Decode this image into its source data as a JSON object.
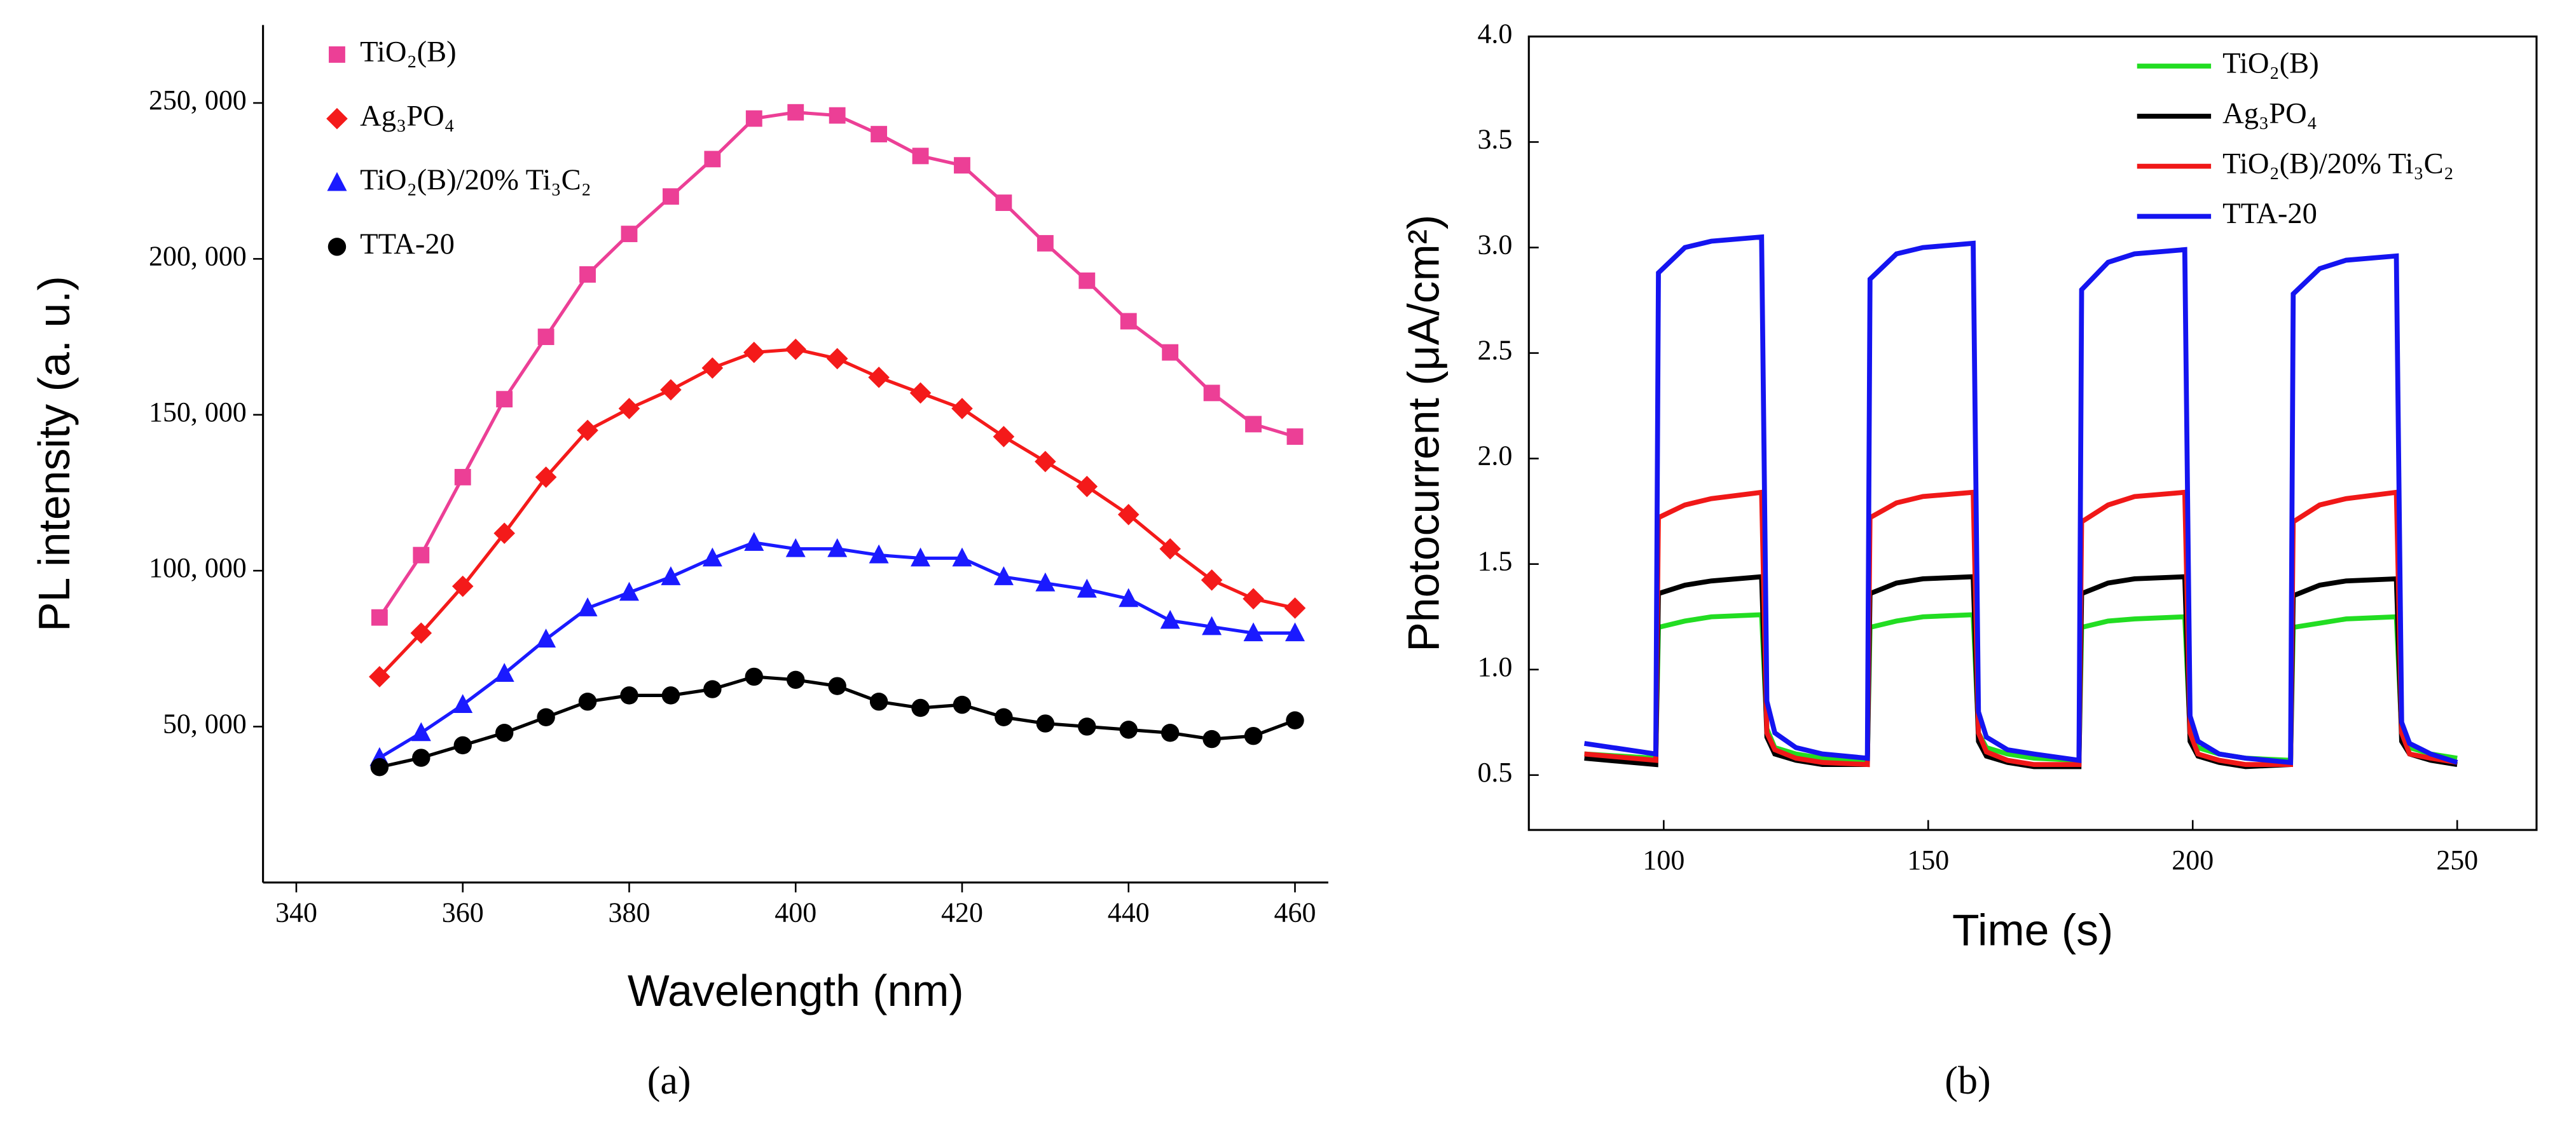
{
  "chart_data": [
    {
      "type": "line",
      "panel_label": "(a)",
      "x_label": "Wavelength (nm)",
      "y_label": "PL intensity (a. u.)",
      "x": [
        350,
        355,
        360,
        365,
        370,
        375,
        380,
        385,
        390,
        395,
        400,
        405,
        410,
        415,
        420,
        425,
        430,
        435,
        440,
        445,
        450,
        455,
        460
      ],
      "series": [
        {
          "name": "TiO₂(B)",
          "color": "#ec3f96",
          "marker": "square",
          "values": [
            85000,
            105000,
            130000,
            155000,
            175000,
            195000,
            208000,
            220000,
            232000,
            245000,
            247000,
            246000,
            240000,
            233000,
            230000,
            218000,
            205000,
            193000,
            180000,
            170000,
            157000,
            147000,
            143000
          ]
        },
        {
          "name": "Ag₃PO₄",
          "color": "#f41a1a",
          "marker": "diamond",
          "values": [
            66000,
            80000,
            95000,
            112000,
            130000,
            145000,
            152000,
            158000,
            165000,
            170000,
            171000,
            168000,
            162000,
            157000,
            152000,
            143000,
            135000,
            127000,
            118000,
            107000,
            97000,
            91000,
            88000
          ]
        },
        {
          "name": "TiO₂(B)/20% Ti₃C₂",
          "color": "#1a1aff",
          "marker": "triangle",
          "values": [
            40000,
            48000,
            57000,
            67000,
            78000,
            88000,
            93000,
            98000,
            104000,
            109000,
            107000,
            107000,
            105000,
            104000,
            104000,
            98000,
            96000,
            94000,
            91000,
            84000,
            82000,
            80000,
            80000
          ]
        },
        {
          "name": "TTA-20",
          "color": "#000000",
          "marker": "circle",
          "values": [
            37000,
            40000,
            44000,
            48000,
            53000,
            58000,
            60000,
            60000,
            62000,
            66000,
            65000,
            63000,
            58000,
            56000,
            57000,
            53000,
            51000,
            50000,
            49000,
            48000,
            46000,
            47000,
            52000
          ]
        }
      ],
      "xlim": [
        336,
        464
      ],
      "xticks": [
        340,
        360,
        380,
        400,
        420,
        440,
        460
      ],
      "ylim": [
        0,
        275000
      ],
      "yticks": [
        {
          "value": 50000,
          "label": "50, 000"
        },
        {
          "value": 100000,
          "label": "100, 000"
        },
        {
          "value": 150000,
          "label": "150, 000"
        },
        {
          "value": 200000,
          "label": "200, 000"
        },
        {
          "value": 250000,
          "label": "250, 000"
        }
      ],
      "frame": false,
      "legend": "top-left"
    },
    {
      "type": "line",
      "panel_label": "(b)",
      "x_label": "Time (s)",
      "y_label": "Photocurrent (μA/cm²)",
      "x": [
        85,
        98.5,
        99,
        104,
        109,
        118.5,
        119.5,
        121,
        125,
        130,
        138.5,
        139,
        144,
        149,
        158.5,
        159.5,
        161,
        165,
        170,
        178.5,
        179,
        184,
        189,
        198.5,
        199.5,
        201,
        205,
        210,
        218.5,
        219,
        224,
        229,
        238.5,
        239.5,
        241,
        245,
        250
      ],
      "series": [
        {
          "name": "TiO₂(B)",
          "color": "#22dd22",
          "values": [
            0.6,
            0.58,
            1.2,
            1.23,
            1.25,
            1.26,
            0.72,
            0.63,
            0.6,
            0.58,
            0.57,
            1.2,
            1.23,
            1.25,
            1.26,
            0.7,
            0.63,
            0.6,
            0.58,
            0.57,
            1.2,
            1.23,
            1.24,
            1.25,
            0.7,
            0.63,
            0.6,
            0.58,
            0.57,
            1.2,
            1.22,
            1.24,
            1.25,
            0.7,
            0.63,
            0.6,
            0.58
          ]
        },
        {
          "name": "Ag₃PO₄",
          "color": "#000000",
          "values": [
            0.58,
            0.55,
            1.36,
            1.4,
            1.42,
            1.44,
            0.68,
            0.6,
            0.57,
            0.55,
            0.55,
            1.36,
            1.41,
            1.43,
            1.44,
            0.66,
            0.59,
            0.56,
            0.54,
            0.54,
            1.36,
            1.41,
            1.43,
            1.44,
            0.66,
            0.59,
            0.56,
            0.54,
            0.55,
            1.35,
            1.4,
            1.42,
            1.43,
            0.66,
            0.6,
            0.57,
            0.55
          ]
        },
        {
          "name": "TiO₂(B)/20% Ti₃C₂",
          "color": "#f01818",
          "values": [
            0.6,
            0.57,
            1.72,
            1.78,
            1.81,
            1.84,
            0.7,
            0.62,
            0.58,
            0.56,
            0.55,
            1.72,
            1.79,
            1.82,
            1.84,
            0.7,
            0.61,
            0.57,
            0.55,
            0.55,
            1.7,
            1.78,
            1.82,
            1.84,
            0.7,
            0.6,
            0.57,
            0.55,
            0.55,
            1.7,
            1.78,
            1.81,
            1.84,
            0.7,
            0.6,
            0.58,
            0.56
          ]
        },
        {
          "name": "TTA-20",
          "color": "#1414f0",
          "values": [
            0.65,
            0.6,
            2.88,
            3.0,
            3.03,
            3.05,
            0.85,
            0.7,
            0.63,
            0.6,
            0.58,
            2.85,
            2.97,
            3.0,
            3.02,
            0.8,
            0.68,
            0.62,
            0.6,
            0.57,
            2.8,
            2.93,
            2.97,
            2.99,
            0.78,
            0.66,
            0.6,
            0.58,
            0.56,
            2.78,
            2.9,
            2.94,
            2.96,
            0.75,
            0.65,
            0.6,
            0.56
          ]
        }
      ],
      "xlim": [
        74.5,
        265
      ],
      "xticks": [
        100,
        150,
        200,
        250
      ],
      "ylim": [
        0.24,
        4.0
      ],
      "yticks": [
        0.5,
        {
          "value": 1,
          "label": "1.0"
        },
        1.5,
        {
          "value": 2,
          "label": "2.0"
        },
        2.5,
        {
          "value": 3,
          "label": "3.0"
        },
        3.5,
        {
          "value": 4,
          "label": "4.0"
        }
      ],
      "frame": true,
      "legend": "top-right"
    }
  ]
}
